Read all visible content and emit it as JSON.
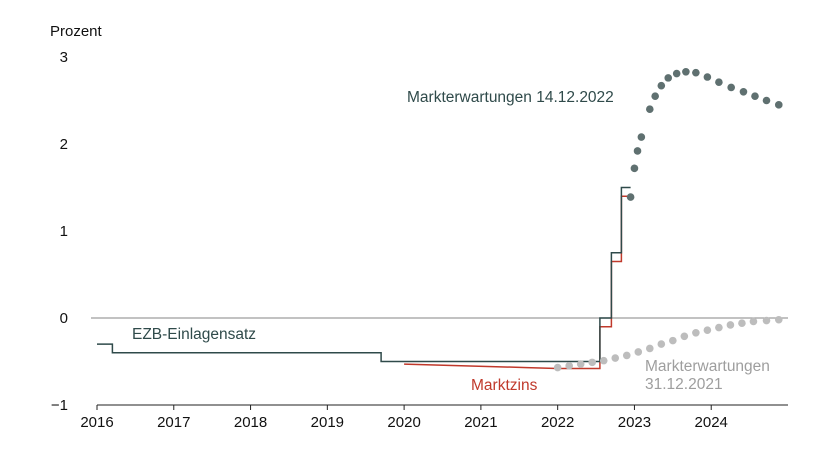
{
  "chart_data": {
    "type": "line",
    "title": "",
    "ylabel": "Prozent",
    "xlabel": "",
    "ylim": [
      -1,
      3
    ],
    "xlim": [
      2016.0,
      2025.0
    ],
    "y_ticks": [
      "3",
      "2",
      "1",
      "0",
      "−1"
    ],
    "x_ticks": [
      "2016",
      "2017",
      "2018",
      "2019",
      "2020",
      "2021",
      "2022",
      "2023",
      "2024"
    ],
    "colors": {
      "ezb": "#2f4a4a",
      "marktzins": "#c0392b",
      "exp_2022": "#5f7070",
      "exp_2021": "#bdbdbd",
      "zero_line": "#9e9e9e",
      "axis": "#222222"
    },
    "series": [
      {
        "name": "EZB-Einlagensatz",
        "label": "EZB-Einlagensatz",
        "style": "step",
        "points": [
          [
            2016.0,
            -0.3
          ],
          [
            2016.2,
            -0.3
          ],
          [
            2016.2,
            -0.4
          ],
          [
            2019.7,
            -0.4
          ],
          [
            2019.7,
            -0.5
          ],
          [
            2022.55,
            -0.5
          ],
          [
            2022.55,
            0.0
          ],
          [
            2022.7,
            0.0
          ],
          [
            2022.7,
            0.75
          ],
          [
            2022.83,
            0.75
          ],
          [
            2022.83,
            1.5
          ],
          [
            2022.95,
            1.5
          ]
        ]
      },
      {
        "name": "Marktzins",
        "label": "Marktzins",
        "style": "step",
        "points": [
          [
            2020.0,
            -0.53
          ],
          [
            2020.4,
            -0.54
          ],
          [
            2020.8,
            -0.55
          ],
          [
            2021.2,
            -0.56
          ],
          [
            2021.6,
            -0.57
          ],
          [
            2022.0,
            -0.58
          ],
          [
            2022.5,
            -0.58
          ],
          [
            2022.55,
            -0.58
          ],
          [
            2022.55,
            -0.1
          ],
          [
            2022.7,
            -0.1
          ],
          [
            2022.7,
            0.65
          ],
          [
            2022.83,
            0.65
          ],
          [
            2022.83,
            1.4
          ],
          [
            2022.95,
            1.4
          ]
        ]
      },
      {
        "name": "Markterwartungen 14.12.2022",
        "label": "Markterwartungen  14.12.2022",
        "style": "dots",
        "x": [
          2022.95,
          2023.0,
          2023.04,
          2023.09,
          2023.2,
          2023.27,
          2023.35,
          2023.44,
          2023.55,
          2023.67,
          2023.8,
          2023.95,
          2024.1,
          2024.26,
          2024.42,
          2024.57,
          2024.72,
          2024.88
        ],
        "y": [
          1.39,
          1.72,
          1.92,
          2.08,
          2.4,
          2.55,
          2.67,
          2.76,
          2.81,
          2.83,
          2.82,
          2.77,
          2.71,
          2.65,
          2.6,
          2.55,
          2.5,
          2.45
        ]
      },
      {
        "name": "Markterwartungen 31.12.2021",
        "label_line1": "Markterwartungen",
        "label_line2": "31.12.2021",
        "style": "dots",
        "x": [
          2022.0,
          2022.15,
          2022.3,
          2022.45,
          2022.6,
          2022.75,
          2022.9,
          2023.05,
          2023.2,
          2023.35,
          2023.5,
          2023.65,
          2023.8,
          2023.95,
          2024.1,
          2024.25,
          2024.4,
          2024.55,
          2024.72,
          2024.88
        ],
        "y": [
          -0.57,
          -0.55,
          -0.53,
          -0.51,
          -0.49,
          -0.46,
          -0.43,
          -0.39,
          -0.35,
          -0.3,
          -0.26,
          -0.21,
          -0.17,
          -0.14,
          -0.11,
          -0.08,
          -0.06,
          -0.04,
          -0.03,
          -0.02
        ]
      }
    ]
  }
}
